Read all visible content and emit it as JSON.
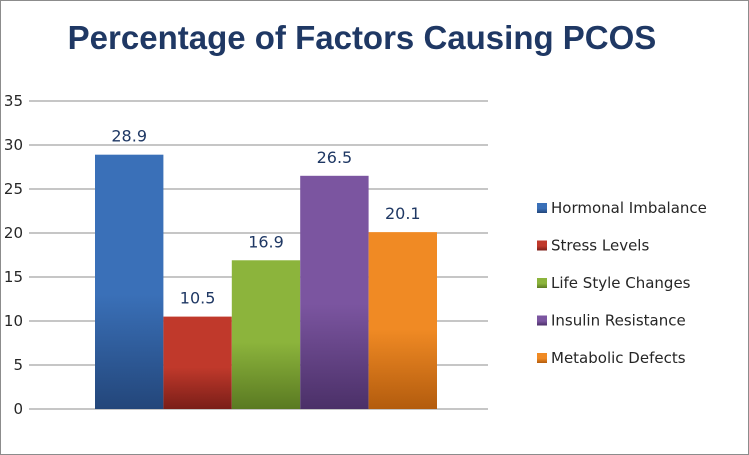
{
  "chart_data": {
    "type": "bar",
    "title": "Percentage of Factors Causing PCOS",
    "xlabel": "",
    "ylabel": "",
    "ylim": [
      0,
      35
    ],
    "yticks": [
      0,
      5,
      10,
      15,
      20,
      25,
      30,
      35
    ],
    "grid": true,
    "legend": "right",
    "series": [
      {
        "name": "Hormonal Imbalance",
        "value": 28.9,
        "label": "28.9",
        "color": "#3a70b8",
        "dark": "#23467a"
      },
      {
        "name": "Stress Levels",
        "value": 10.5,
        "label": "10.5",
        "color": "#c0392b",
        "dark": "#7a1e18"
      },
      {
        "name": "Life Style Changes",
        "value": 16.9,
        "label": "16.9",
        "color": "#8cb43c",
        "dark": "#5a7a22"
      },
      {
        "name": "Insulin Resistance",
        "value": 26.5,
        "label": "26.5",
        "color": "#7b55a0",
        "dark": "#4b3068"
      },
      {
        "name": "Metabolic Defects",
        "value": 20.1,
        "label": "20.1",
        "color": "#f08a24",
        "dark": "#b35c0e"
      }
    ]
  }
}
